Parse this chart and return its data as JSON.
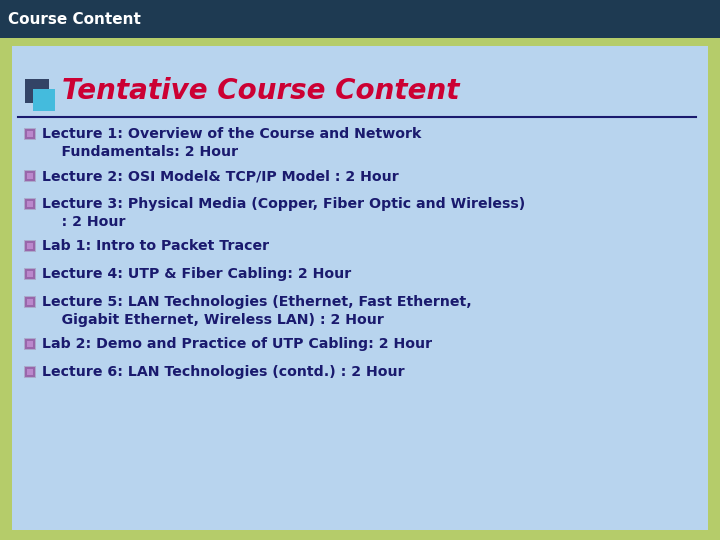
{
  "header_text": "Course Content",
  "header_bg": "#1e3a52",
  "header_text_color": "#ffffff",
  "header_font_size": 11,
  "main_bg": "#b5cc6a",
  "content_bg": "#b8d4ee",
  "title": "Tentative Course Content",
  "title_color": "#cc0033",
  "title_font_size": 20,
  "line_color": "#1a1a6e",
  "text_color": "#1a1a6e",
  "text_font_size": 10.2,
  "bullet_outer": "#8888aa",
  "bullet_inner": "#9966aa",
  "title_icon_dark": "#334466",
  "title_icon_cyan": "#44bbdd",
  "items": [
    "Lecture 1: Overview of the Course and Network\n    Fundamentals: 2 Hour",
    "Lecture 2: OSI Model& TCP/IP Model : 2 Hour",
    "Lecture 3: Physical Media (Copper, Fiber Optic and Wireless)\n    : 2 Hour",
    "Lab 1: Intro to Packet Tracer",
    "Lecture 4: UTP & Fiber Cabling: 2 Hour",
    "Lecture 5: LAN Technologies (Ethernet, Fast Ethernet,\n    Gigabit Ethernet, Wireless LAN) : 2 Hour",
    "Lab 2: Demo and Practice of UTP Cabling: 2 Hour",
    "Lecture 6: LAN Technologies (contd.) : 2 Hour"
  ]
}
